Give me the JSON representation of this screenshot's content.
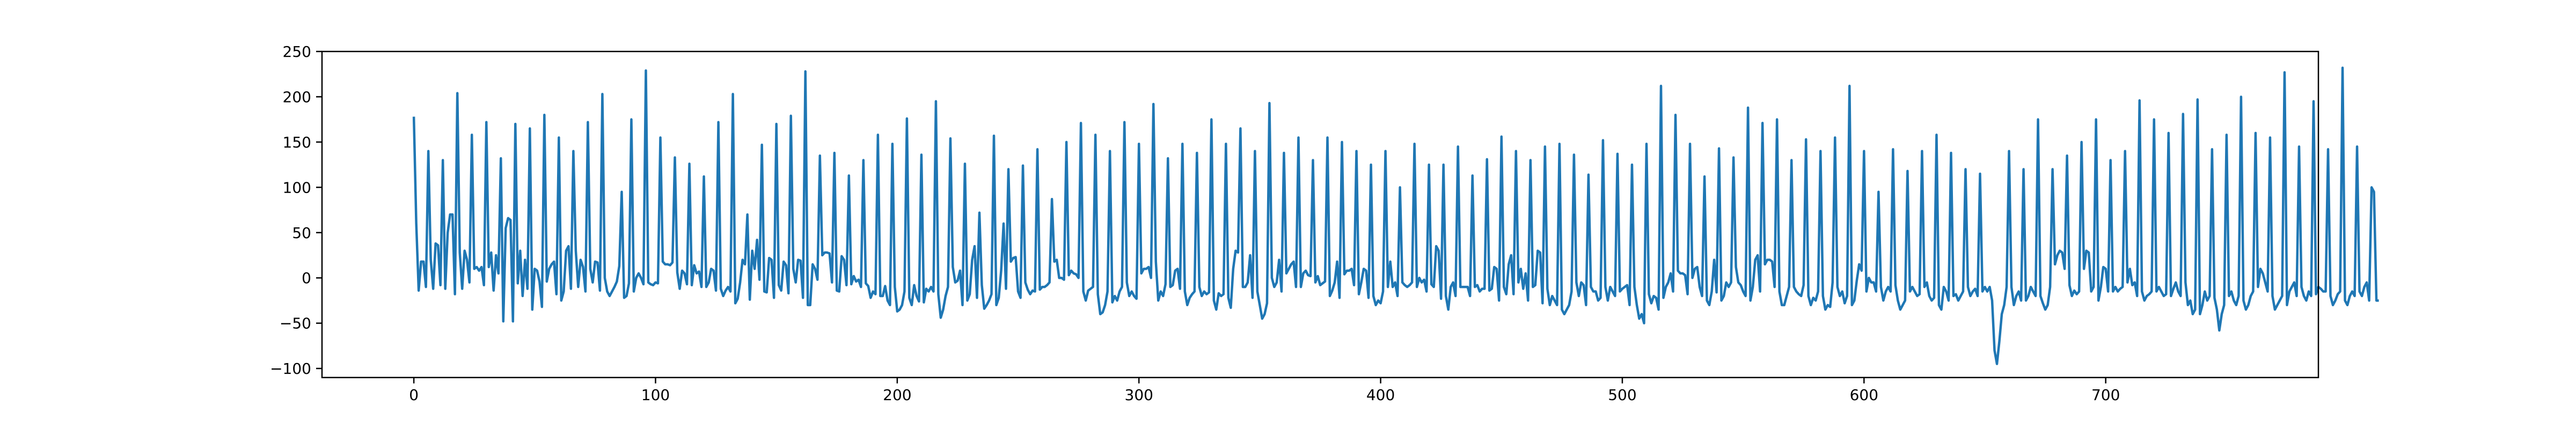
{
  "chart_data": {
    "type": "line",
    "title": "",
    "xlabel": "",
    "ylabel": "",
    "xlim": [
      -38,
      788
    ],
    "ylim": [
      -110,
      250
    ],
    "xticks": [
      0,
      100,
      200,
      300,
      400,
      500,
      600,
      700
    ],
    "yticks": [
      -100,
      -50,
      0,
      50,
      100,
      150,
      200,
      250
    ],
    "grid": false,
    "legend": "none",
    "series": [
      {
        "color": "#1f77b4",
        "x_start": 0,
        "x_step": 1,
        "values": [
          178,
          60,
          -14,
          18,
          18,
          -10,
          140,
          20,
          -12,
          38,
          36,
          -8,
          130,
          -12,
          50,
          70,
          70,
          -18,
          204,
          28,
          -12,
          30,
          20,
          -5,
          158,
          10,
          12,
          8,
          12,
          -8,
          172,
          12,
          28,
          -14,
          25,
          5,
          132,
          -48,
          55,
          66,
          64,
          -48,
          170,
          -6,
          30,
          -20,
          20,
          -12,
          165,
          -35,
          10,
          8,
          -4,
          -32,
          180,
          -4,
          10,
          15,
          18,
          -18,
          155,
          -25,
          -15,
          30,
          35,
          -12,
          140,
          30,
          -10,
          20,
          12,
          -15,
          172,
          10,
          -5,
          18,
          17,
          -14,
          203,
          0,
          -15,
          -20,
          -15,
          -10,
          -4,
          13,
          95,
          -22,
          -20,
          -6,
          175,
          -15,
          0,
          5,
          0,
          -7,
          229,
          -5,
          -7,
          -8,
          -5,
          -6,
          155,
          18,
          15,
          15,
          14,
          17,
          133,
          6,
          -12,
          8,
          5,
          -7,
          126,
          -8,
          14,
          5,
          7,
          -10,
          112,
          -10,
          -5,
          10,
          8,
          -14,
          172,
          -12,
          -20,
          -14,
          -10,
          -15,
          203,
          -28,
          -23,
          -5,
          20,
          15,
          70,
          -24,
          30,
          10,
          42,
          -2,
          147,
          -15,
          -16,
          22,
          20,
          -22,
          170,
          -8,
          -14,
          18,
          14,
          -17,
          179,
          10,
          -5,
          20,
          19,
          -22,
          228,
          -30,
          -30,
          15,
          10,
          -2,
          135,
          25,
          28,
          28,
          27,
          -5,
          138,
          -14,
          -15,
          24,
          20,
          -8,
          113,
          -7,
          2,
          -4,
          -2,
          -10,
          130,
          -6,
          -9,
          -22,
          -15,
          -18,
          158,
          -20,
          -20,
          -9,
          -25,
          -30,
          148,
          -10,
          -37,
          -35,
          -30,
          -15,
          176,
          -22,
          -30,
          -8,
          -20,
          -26,
          136,
          -27,
          -12,
          -15,
          -10,
          -15,
          195,
          -18,
          -44,
          -35,
          -20,
          -10,
          154,
          12,
          -5,
          -3,
          8,
          -30,
          126,
          -25,
          -18,
          20,
          35,
          -22,
          72,
          -8,
          -34,
          -30,
          -25,
          -18,
          157,
          -30,
          -22,
          8,
          60,
          -12,
          120,
          18,
          22,
          23,
          -15,
          -22,
          124,
          -5,
          -13,
          -18,
          -14,
          -15,
          142,
          -13,
          -10,
          -10,
          -8,
          -5,
          87,
          18,
          20,
          0,
          0,
          -2,
          150,
          3,
          8,
          5,
          4,
          0,
          171,
          -15,
          -25,
          -14,
          -12,
          -10,
          158,
          -18,
          -40,
          -38,
          -30,
          -15,
          140,
          -27,
          -20,
          -25,
          -15,
          -10,
          172,
          -5,
          -20,
          -15,
          -20,
          -23,
          148,
          5,
          10,
          10,
          12,
          0,
          192,
          18,
          -25,
          -15,
          -20,
          -7,
          132,
          -10,
          -8,
          8,
          10,
          -12,
          148,
          -15,
          -30,
          -22,
          -18,
          -15,
          138,
          -10,
          -20,
          -15,
          -18,
          -16,
          175,
          -25,
          -35,
          -17,
          -20,
          -18,
          148,
          -22,
          -33,
          10,
          30,
          28,
          165,
          -10,
          -10,
          -5,
          25,
          -22,
          140,
          -15,
          -30,
          -45,
          -40,
          -28,
          193,
          0,
          -10,
          -5,
          20,
          -15,
          138,
          5,
          10,
          15,
          18,
          -10,
          155,
          -10,
          5,
          8,
          3,
          2,
          130,
          -5,
          2,
          -8,
          -6,
          -4,
          155,
          -20,
          -14,
          -5,
          18,
          -22,
          150,
          4,
          8,
          8,
          10,
          -8,
          140,
          -18,
          -5,
          10,
          8,
          -22,
          125,
          -20,
          -30,
          -25,
          -28,
          -15,
          140,
          -10,
          18,
          -10,
          -5,
          -20,
          100,
          -5,
          -8,
          -10,
          -8,
          -5,
          148,
          -10,
          0,
          -5,
          -2,
          -15,
          125,
          -7,
          -10,
          35,
          30,
          -23,
          125,
          -20,
          -35,
          -10,
          -5,
          -20,
          145,
          -10,
          -10,
          -10,
          -10,
          -20,
          113,
          -10,
          -8,
          -15,
          -12,
          -12,
          131,
          -14,
          -12,
          12,
          10,
          -25,
          156,
          -10,
          -18,
          15,
          25,
          -18,
          140,
          -5,
          10,
          -12,
          5,
          -25,
          130,
          -10,
          -8,
          30,
          28,
          -28,
          145,
          -12,
          -30,
          -20,
          -25,
          -30,
          148,
          -35,
          -40,
          -35,
          -30,
          -15,
          136,
          -5,
          -20,
          -5,
          -8,
          -30,
          114,
          -10,
          -15,
          -15,
          -25,
          -22,
          152,
          -10,
          -25,
          -10,
          -15,
          -20,
          137,
          -15,
          -12,
          -10,
          -8,
          -30,
          125,
          -10,
          -30,
          -45,
          -40,
          -50,
          148,
          -18,
          -28,
          -20,
          -22,
          -35,
          212,
          -22,
          -10,
          -5,
          5,
          -15,
          180,
          8,
          5,
          5,
          3,
          -18,
          148,
          0,
          10,
          12,
          -10,
          -20,
          112,
          -25,
          -30,
          -15,
          20,
          -16,
          143,
          -25,
          -20,
          -5,
          -10,
          -5,
          133,
          12,
          -5,
          -8,
          -15,
          -20,
          188,
          -25,
          -10,
          20,
          25,
          -15,
          171,
          15,
          20,
          20,
          18,
          -10,
          175,
          -15,
          -30,
          -30,
          -20,
          -10,
          130,
          -10,
          -15,
          -18,
          -20,
          -8,
          153,
          -20,
          -30,
          -22,
          -25,
          -15,
          140,
          -20,
          -35,
          -30,
          -32,
          -5,
          155,
          -10,
          -20,
          -15,
          -28,
          -20,
          212,
          -30,
          -25,
          -3,
          15,
          8,
          140,
          -15,
          0,
          -5,
          -5,
          -15,
          95,
          -10,
          -25,
          -15,
          -10,
          -15,
          142,
          -8,
          -25,
          -35,
          -30,
          -25,
          118,
          -15,
          -10,
          -15,
          -20,
          -18,
          140,
          -10,
          -5,
          -20,
          -25,
          -22,
          158,
          -30,
          -35,
          -10,
          -15,
          -25,
          138,
          -20,
          -18,
          -25,
          -20,
          -15,
          120,
          -10,
          -20,
          -15,
          -12,
          -20,
          115,
          -15,
          -10,
          -15,
          -10,
          -25,
          -80,
          -95,
          -70,
          -40,
          -30,
          -10,
          140,
          -10,
          -30,
          -20,
          -15,
          -25,
          120,
          -25,
          -20,
          -10,
          -15,
          -20,
          175,
          -20,
          -28,
          -35,
          -30,
          -10,
          120,
          15,
          25,
          30,
          28,
          10,
          135,
          -8,
          -20,
          -14,
          -18,
          -15,
          150,
          10,
          30,
          28,
          -15,
          -10,
          175,
          -25,
          -10,
          12,
          10,
          -15,
          130,
          -15,
          -10,
          -15,
          -12,
          -10,
          140,
          -5,
          10,
          -8,
          -5,
          -20,
          196,
          -15,
          -25,
          -20,
          -18,
          -15,
          175,
          -15,
          -10,
          -15,
          -20,
          -18,
          160,
          -20,
          -12,
          -5,
          -15,
          -20,
          181,
          -5,
          -30,
          -25,
          -40,
          -35,
          197,
          -40,
          -30,
          -15,
          -25,
          -20,
          142,
          -22,
          -35,
          -58,
          -40,
          -30,
          158,
          -20,
          -15,
          -25,
          -30,
          -20,
          200,
          -25,
          -35,
          -30,
          -20,
          -15,
          160,
          -10,
          10,
          5,
          -5,
          -15,
          155,
          -20,
          -35,
          -30,
          -25,
          -20,
          227,
          -30,
          -15,
          -10,
          -5,
          -20,
          145,
          -10,
          -20,
          -25,
          -15,
          -20,
          195,
          -18,
          -10,
          -12,
          -15,
          -15,
          142,
          -20,
          -30,
          -25,
          -18,
          -15,
          232,
          -25,
          -30,
          -20,
          -15,
          -20,
          145,
          -15,
          -20,
          -10,
          -5,
          -25,
          100,
          95,
          -25,
          -25
        ]
      }
    ]
  }
}
